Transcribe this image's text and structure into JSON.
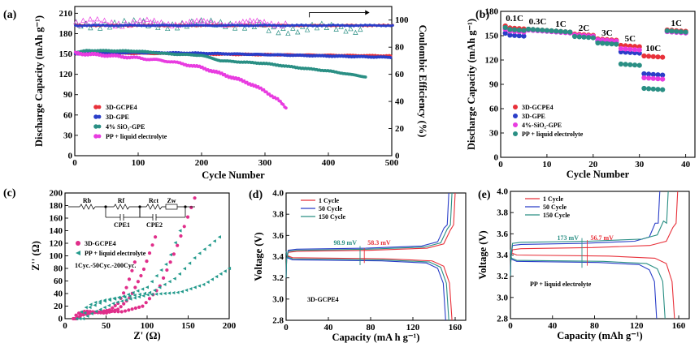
{
  "colors": {
    "red": "#e8313a",
    "blue": "#2a3ec8",
    "pink": "#e83ce0",
    "teal": "#2a8f84",
    "hotpink": "#e02e8a",
    "tealEis": "#239a8c",
    "gray": "#666666"
  },
  "chart_data": [
    {
      "id": "a",
      "type": "scatter",
      "panel_label": "(a)",
      "xlabel": "Cycle Number",
      "ylabel": "Discharge Capacity (mAh g⁻¹)",
      "y2label": "Coulombic Efficiency (%)",
      "xlim": [
        0,
        500
      ],
      "ylim": [
        0,
        220
      ],
      "y2lim": [
        0,
        110
      ],
      "xticks": [
        0,
        100,
        200,
        300,
        400,
        500
      ],
      "yticks": [
        0,
        30,
        60,
        90,
        120,
        150,
        180,
        210
      ],
      "y2ticks": [
        0,
        20,
        40,
        60,
        80,
        100
      ],
      "legend": [
        "3D-GCPE4",
        "3D-GPE",
        "4% SiO₂-GPE",
        "PP + liquid electrolyte"
      ],
      "series": [
        {
          "name": "3D-GCPE4",
          "color": "red",
          "points": [
            [
              1,
              150
            ],
            [
              50,
              151
            ],
            [
              100,
              151
            ],
            [
              200,
              150
            ],
            [
              300,
              149
            ],
            [
              400,
              148
            ],
            [
              500,
              147
            ]
          ]
        },
        {
          "name": "3D-GPE",
          "color": "blue",
          "points": [
            [
              1,
              150
            ],
            [
              50,
              152
            ],
            [
              100,
              152
            ],
            [
              200,
              151
            ],
            [
              300,
              149
            ],
            [
              400,
              147
            ],
            [
              500,
              145
            ]
          ]
        },
        {
          "name": "4% SiO₂-GPE",
          "color": "teal",
          "points": [
            [
              1,
              152
            ],
            [
              20,
              155
            ],
            [
              100,
              154
            ],
            [
              150,
              150
            ],
            [
              200,
              148
            ],
            [
              230,
              140
            ],
            [
              300,
              136
            ],
            [
              350,
              130
            ],
            [
              400,
              125
            ],
            [
              460,
              116
            ]
          ]
        },
        {
          "name": "PP + liquid electrolyte",
          "color": "pink",
          "points": [
            [
              1,
              151
            ],
            [
              50,
              148
            ],
            [
              100,
              144
            ],
            [
              150,
              139
            ],
            [
              200,
              130
            ],
            [
              250,
              115
            ],
            [
              280,
              105
            ],
            [
              300,
              95
            ],
            [
              320,
              83
            ],
            [
              335,
              68
            ]
          ]
        }
      ],
      "efficiency": [
        {
          "name": "3D-GCPE4",
          "color": "red",
          "value": 96
        },
        {
          "name": "3D-GPE",
          "color": "blue",
          "value": 96
        }
      ]
    },
    {
      "id": "b",
      "type": "scatter",
      "panel_label": "(b)",
      "xlabel": "Cycle Number",
      "ylabel": "Discharge Capacity (mAh g⁻¹)",
      "xlim": [
        0,
        42
      ],
      "ylim": [
        0,
        180
      ],
      "xticks": [
        0,
        10,
        20,
        30,
        40
      ],
      "yticks": [
        0,
        30,
        60,
        90,
        120,
        150,
        180
      ],
      "rates": [
        "0.1C",
        "0.3C",
        "1C",
        "2C",
        "3C",
        "5C",
        "10C",
        "1C"
      ],
      "legend": [
        "3D-GCPE4",
        "3D-GPE",
        "4%-SiO₂-GPE",
        "PP + liquid electrolyte"
      ],
      "series": [
        {
          "name": "3D-GCPE4",
          "color": "red",
          "levels": [
            160,
            158,
            156,
            152,
            146,
            138,
            125,
            157
          ]
        },
        {
          "name": "3D-GPE",
          "color": "blue",
          "levels": [
            151,
            157,
            155,
            150,
            143,
            130,
            103,
            155
          ]
        },
        {
          "name": "4%-SiO₂-GPE",
          "color": "pink",
          "levels": [
            156,
            157,
            155,
            151,
            145,
            134,
            98,
            155
          ]
        },
        {
          "name": "PP + liquid electrolyte",
          "color": "teal",
          "levels": [
            158,
            158,
            156,
            149,
            141,
            115,
            85,
            156
          ]
        }
      ]
    },
    {
      "id": "c",
      "type": "scatter",
      "panel_label": "(c)",
      "xlabel": "Z' (Ω)",
      "ylabel": "Z'' (Ω)",
      "xlim": [
        0,
        200
      ],
      "ylim": [
        0,
        200
      ],
      "xticks": [
        0,
        50,
        100,
        150,
        200
      ],
      "yticks": [
        0,
        20,
        40,
        60,
        80,
        100,
        120,
        140,
        160,
        180,
        200
      ],
      "legend": [
        "3D-GCPE4",
        "PP + liquid electrolyte"
      ],
      "annotation": "1Cyc.-50Cyc.-200Cyc.",
      "circuit_labels": [
        "Rb",
        "Rf",
        "Rct",
        "Zw",
        "CPE1",
        "CPE2"
      ],
      "series": [
        {
          "name": "3D-GCPE4",
          "color": "hotpink",
          "curves": [
            [
              [
                10,
                0
              ],
              [
                15,
                8
              ],
              [
                25,
                12
              ],
              [
                40,
                10
              ],
              [
                55,
                14
              ],
              [
                65,
                25
              ],
              [
                75,
                50
              ],
              [
                85,
                90
              ]
            ],
            [
              [
                12,
                0
              ],
              [
                20,
                6
              ],
              [
                35,
                10
              ],
              [
                50,
                9
              ],
              [
                65,
                15
              ],
              [
                80,
                35
              ],
              [
                95,
                75
              ],
              [
                110,
                130
              ]
            ],
            [
              [
                14,
                0
              ],
              [
                25,
                8
              ],
              [
                45,
                12
              ],
              [
                70,
                11
              ],
              [
                95,
                20
              ],
              [
                115,
                50
              ],
              [
                135,
                110
              ],
              [
                158,
                192
              ]
            ]
          ]
        },
        {
          "name": "PP + liquid electrolyte",
          "color": "tealEis",
          "curves": [
            [
              [
                14,
                0
              ],
              [
                22,
                15
              ],
              [
                34,
                25
              ],
              [
                50,
                30
              ],
              [
                70,
                35
              ],
              [
                100,
                50
              ],
              [
                125,
                90
              ],
              [
                140,
                140
              ]
            ],
            [
              [
                18,
                0
              ],
              [
                30,
                18
              ],
              [
                48,
                28
              ],
              [
                75,
                35
              ],
              [
                105,
                42
              ],
              [
                135,
                65
              ],
              [
                160,
                100
              ],
              [
                188,
                130
              ]
            ],
            [
              [
                22,
                0
              ],
              [
                35,
                10
              ],
              [
                60,
                25
              ],
              [
                100,
                38
              ],
              [
                140,
                42
              ],
              [
                170,
                55
              ],
              [
                200,
                80
              ]
            ]
          ]
        }
      ]
    },
    {
      "id": "d",
      "type": "line",
      "panel_label": "(d)",
      "xlabel": "Capacity (mA h g⁻¹)",
      "ylabel": "Voltage (V)",
      "xlim": [
        0,
        170
      ],
      "ylim": [
        2.8,
        4.0
      ],
      "xticks": [
        0,
        40,
        80,
        120,
        160
      ],
      "yticks": [
        2.8,
        3.0,
        3.2,
        3.4,
        3.6,
        3.8,
        4.0
      ],
      "legend": [
        "1 Cycle",
        "50 Cycle",
        "150 Cycle"
      ],
      "inset_label": "3D-GCPE4",
      "polarization_labels": [
        "98.9 mV",
        "58.3 mV"
      ],
      "series": [
        {
          "name": "1 Cycle",
          "color": "red",
          "charge_plateau": 3.45,
          "discharge_plateau": 3.39,
          "capacity": 157
        },
        {
          "name": "50 Cycle",
          "color": "blue",
          "charge_plateau": 3.47,
          "discharge_plateau": 3.37,
          "capacity": 151
        },
        {
          "name": "150 Cycle",
          "color": "teal",
          "charge_plateau": 3.46,
          "discharge_plateau": 3.38,
          "capacity": 154
        }
      ]
    },
    {
      "id": "e",
      "type": "line",
      "panel_label": "(e)",
      "xlabel": "Capacity (mAh g⁻¹)",
      "ylabel": "Voltage (V)",
      "xlim": [
        0,
        170
      ],
      "ylim": [
        2.8,
        4.0
      ],
      "xticks": [
        0,
        40,
        80,
        120,
        160
      ],
      "yticks": [
        2.8,
        3.0,
        3.2,
        3.4,
        3.6,
        3.8,
        4.0
      ],
      "legend": [
        "1 Cycle",
        "50 Cycle",
        "150 Cycle"
      ],
      "inset_label": "PP + liquid electrolyte",
      "polarization_labels": [
        "173 mV",
        "56.7 mV"
      ],
      "series": [
        {
          "name": "1 Cycle",
          "color": "red",
          "charge_plateau": 3.46,
          "discharge_plateau": 3.4,
          "capacity": 156
        },
        {
          "name": "50 Cycle",
          "color": "blue",
          "charge_plateau": 3.5,
          "discharge_plateau": 3.34,
          "capacity": 139
        },
        {
          "name": "150 Cycle",
          "color": "teal",
          "charge_plateau": 3.52,
          "discharge_plateau": 3.35,
          "capacity": 147
        }
      ]
    }
  ]
}
